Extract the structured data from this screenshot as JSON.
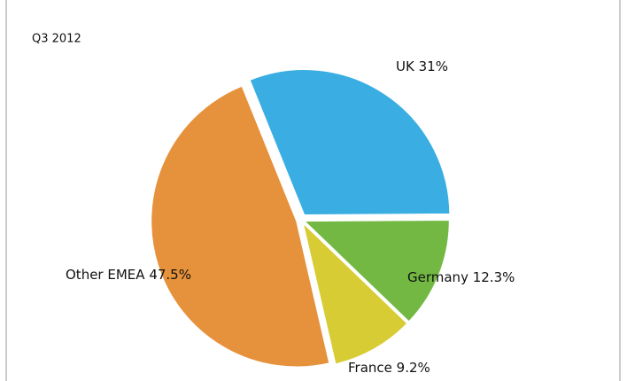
{
  "chart_data": {
    "type": "pie",
    "title": "Q3 2012",
    "categories": [
      "UK",
      "Germany",
      "France",
      "Other EMEA"
    ],
    "values": [
      31,
      12.3,
      9.2,
      47.5
    ],
    "value_labels": [
      "31%",
      "12.3%",
      "9.2%",
      "47.5%"
    ],
    "colors": [
      "#3aaee2",
      "#72b843",
      "#d8cc35",
      "#e6913b"
    ]
  }
}
